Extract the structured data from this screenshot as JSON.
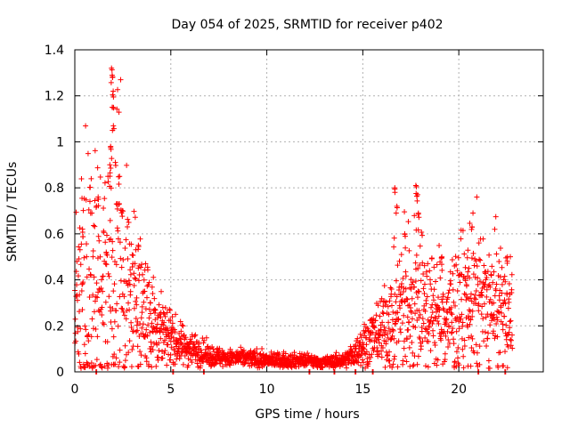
{
  "chart_data": {
    "type": "scatter",
    "title": "Day 054 of 2025, SRMTID for receiver p402",
    "xlabel": "GPS time / hours",
    "ylabel": "SRMTID / TECUs",
    "xlim": [
      0,
      24.4
    ],
    "ylim": [
      0,
      1.4
    ],
    "grid": true,
    "marker": "+",
    "color": "#ff0000",
    "x_ticks": [
      0,
      5,
      10,
      15,
      20
    ],
    "x_tick_labels": [
      "0",
      "5",
      "10",
      "15",
      "20"
    ],
    "y_ticks": [
      0,
      0.2,
      0.4,
      0.6,
      0.8,
      1.0,
      1.2,
      1.4
    ],
    "y_tick_labels": [
      "0",
      "0.2",
      "0.4",
      "0.6",
      "0.8",
      "1",
      "1.2",
      "1.4"
    ],
    "profile_hours": [
      0,
      0.5,
      1.0,
      1.5,
      1.9,
      2.3,
      2.7,
      3.2,
      3.7,
      4.2,
      4.7,
      5.2,
      5.7,
      6.2,
      7.0,
      8.0,
      9.0,
      10.0,
      11.0,
      12.0,
      13.0,
      14.0,
      14.6,
      15.0,
      15.5,
      16.0,
      16.5,
      17.0,
      17.5,
      18.0,
      18.5,
      19.0,
      19.5,
      20.0,
      20.5,
      21.0,
      21.5,
      22.0,
      22.5,
      22.8
    ],
    "profile_srmtid": [
      0.3,
      0.38,
      0.42,
      0.38,
      0.45,
      0.5,
      0.35,
      0.3,
      0.28,
      0.22,
      0.17,
      0.13,
      0.11,
      0.1,
      0.07,
      0.06,
      0.06,
      0.05,
      0.05,
      0.05,
      0.04,
      0.05,
      0.08,
      0.12,
      0.15,
      0.18,
      0.22,
      0.28,
      0.3,
      0.3,
      0.27,
      0.25,
      0.24,
      0.28,
      0.3,
      0.3,
      0.28,
      0.27,
      0.26,
      0.25
    ],
    "spikes": [
      {
        "x": 1.95,
        "y": 1.32
      },
      {
        "x": 1.93,
        "y": 1.29
      },
      {
        "x": 2.0,
        "y": 1.22
      },
      {
        "x": 1.98,
        "y": 1.15
      },
      {
        "x": 2.0,
        "y": 1.07
      },
      {
        "x": 1.9,
        "y": 0.98
      },
      {
        "x": 1.85,
        "y": 0.9
      },
      {
        "x": 2.3,
        "y": 0.85
      },
      {
        "x": 1.2,
        "y": 0.76
      },
      {
        "x": 2.2,
        "y": 0.73
      },
      {
        "x": 0.4,
        "y": 0.62
      },
      {
        "x": 3.3,
        "y": 0.55
      },
      {
        "x": 16.7,
        "y": 0.8
      },
      {
        "x": 16.75,
        "y": 0.72
      },
      {
        "x": 17.8,
        "y": 0.81
      },
      {
        "x": 17.85,
        "y": 0.77
      },
      {
        "x": 17.9,
        "y": 0.69
      },
      {
        "x": 17.2,
        "y": 0.6
      },
      {
        "x": 20.7,
        "y": 0.63
      },
      {
        "x": 22.5,
        "y": 0.5
      },
      {
        "x": 20.5,
        "y": 0.45
      },
      {
        "x": 19.1,
        "y": 0.5
      }
    ],
    "zero_points": [
      1.1,
      5.1,
      6.7,
      12.2,
      13.5,
      14.6,
      15.5,
      21.0,
      22.4
    ]
  }
}
